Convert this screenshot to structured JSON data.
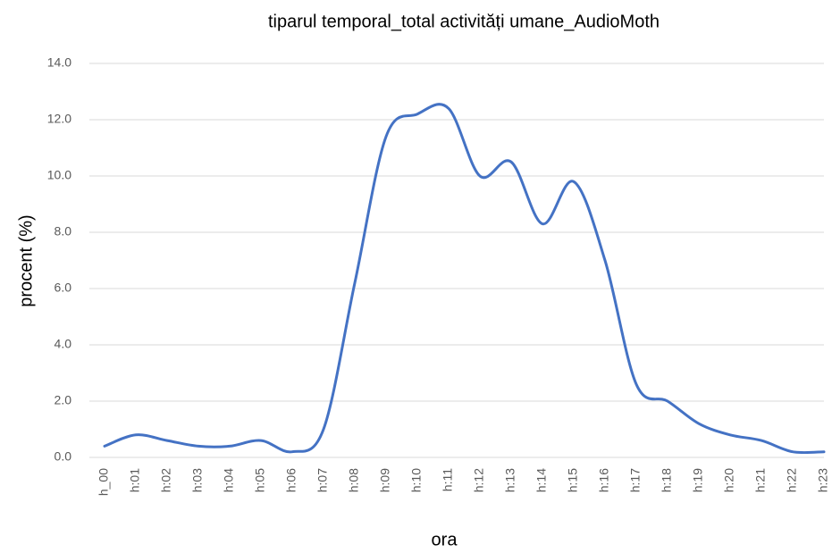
{
  "chart_data": {
    "type": "line",
    "title": "tiparul temporal_total activități umane_AudioMoth",
    "x_label": "ora",
    "y_label": "procent (%)",
    "categories": [
      "h_00",
      "h:01",
      "h:02",
      "h:03",
      "h:04",
      "h:05",
      "h:06",
      "h:07",
      "h:08",
      "h:09",
      "h:10",
      "h:11",
      "h:12",
      "h:13",
      "h:14",
      "h:15",
      "h:16",
      "h:17",
      "h:18",
      "h:19",
      "h:20",
      "h:21",
      "h:22",
      "h:23"
    ],
    "values": [
      0.4,
      0.8,
      0.6,
      0.4,
      0.4,
      0.6,
      0.2,
      1.0,
      6.2,
      11.4,
      12.2,
      12.4,
      10.0,
      10.5,
      8.3,
      9.8,
      7.0,
      2.6,
      2.0,
      1.2,
      0.8,
      0.6,
      0.2,
      0.2
    ],
    "color": "#4472c4",
    "smooth": true,
    "ylim": [
      0,
      14
    ],
    "yticks": [
      {
        "value": 0,
        "label": "0.0"
      },
      {
        "value": 2,
        "label": "2.0"
      },
      {
        "value": 4,
        "label": "4.0"
      },
      {
        "value": 6,
        "label": "6.0"
      },
      {
        "value": 8,
        "label": "8.0"
      },
      {
        "value": 10,
        "label": "10.0"
      },
      {
        "value": 12,
        "label": "12.0"
      },
      {
        "value": 14,
        "label": "14.0"
      }
    ],
    "grid": true
  }
}
